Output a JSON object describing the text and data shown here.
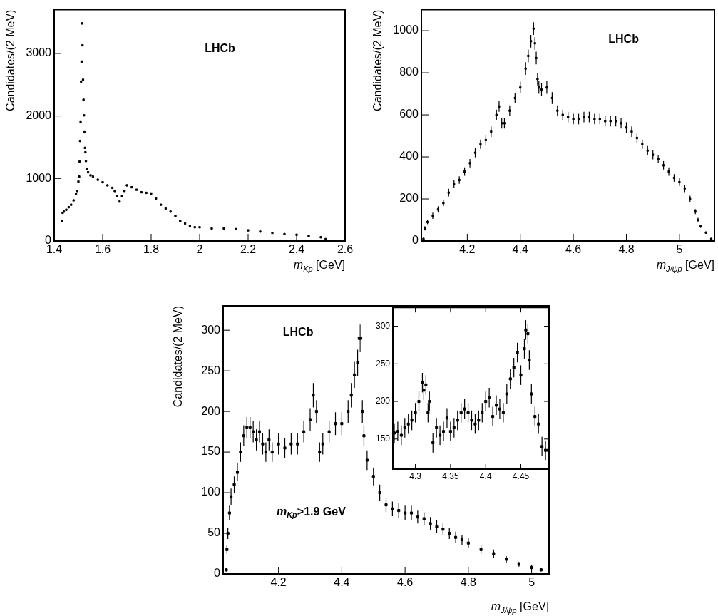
{
  "chart_data": [
    {
      "type": "scatter",
      "xlabel": "m$_{Kp}$ [GeV]",
      "ylabel": "Candidates/(2 MeV)",
      "annotations": [
        "LHCb"
      ],
      "marker": "square",
      "xlim": [
        1.4,
        2.6
      ],
      "ylim": [
        0,
        3700
      ],
      "xticks": [
        1.4,
        1.6,
        1.8,
        2,
        2.2,
        2.4,
        2.6
      ],
      "yticks": [
        0,
        1000,
        2000,
        3000
      ],
      "x": [
        1.432,
        1.435,
        1.44,
        1.45,
        1.46,
        1.47,
        1.48,
        1.49,
        1.495,
        1.5,
        1.503,
        1.505,
        1.507,
        1.509,
        1.511,
        1.513,
        1.515,
        1.517,
        1.519,
        1.521,
        1.523,
        1.525,
        1.527,
        1.529,
        1.531,
        1.535,
        1.54,
        1.55,
        1.56,
        1.58,
        1.6,
        1.62,
        1.64,
        1.65,
        1.66,
        1.67,
        1.68,
        1.69,
        1.7,
        1.72,
        1.74,
        1.76,
        1.78,
        1.8,
        1.82,
        1.84,
        1.86,
        1.88,
        1.9,
        1.92,
        1.94,
        1.96,
        1.98,
        2,
        2.05,
        2.1,
        2.15,
        2.2,
        2.25,
        2.3,
        2.35,
        2.4,
        2.45,
        2.5,
        2.52
      ],
      "series": [
        {
          "color": "#000000",
          "values": [
            320,
            450,
            470,
            500,
            540,
            580,
            650,
            750,
            800,
            950,
            1030,
            1270,
            1600,
            1900,
            2550,
            2870,
            3480,
            3130,
            2580,
            2260,
            2010,
            1740,
            1490,
            1420,
            1280,
            1150,
            1100,
            1050,
            1030,
            980,
            940,
            890,
            850,
            800,
            720,
            630,
            720,
            800,
            890,
            860,
            820,
            780,
            770,
            760,
            680,
            580,
            520,
            470,
            400,
            320,
            280,
            240,
            220,
            220,
            200,
            200,
            190,
            170,
            150,
            130,
            110,
            100,
            80,
            60,
            30
          ]
        }
      ]
    },
    {
      "type": "scatter",
      "xlabel": "m$_{J/ψp}$ [GeV]",
      "ylabel": "Candidates/(2 MeV)",
      "annotations": [
        "LHCb"
      ],
      "marker": "square",
      "xlim": [
        4.027,
        5.132
      ],
      "ylim": [
        0,
        1100
      ],
      "xticks": [
        4.2,
        4.4,
        4.6,
        4.8,
        5
      ],
      "yticks": [
        0,
        200,
        400,
        600,
        800,
        1000
      ],
      "x": [
        4.035,
        4.04,
        4.05,
        4.07,
        4.09,
        4.11,
        4.13,
        4.15,
        4.17,
        4.19,
        4.21,
        4.23,
        4.25,
        4.27,
        4.29,
        4.31,
        4.32,
        4.33,
        4.34,
        4.36,
        4.38,
        4.4,
        4.42,
        4.43,
        4.44,
        4.45,
        4.455,
        4.46,
        4.465,
        4.47,
        4.48,
        4.5,
        4.52,
        4.54,
        4.56,
        4.58,
        4.6,
        4.62,
        4.64,
        4.66,
        4.68,
        4.7,
        4.72,
        4.74,
        4.76,
        4.78,
        4.8,
        4.82,
        4.84,
        4.86,
        4.88,
        4.9,
        4.92,
        4.94,
        4.96,
        4.98,
        5,
        5.02,
        5.04,
        5.06,
        5.07,
        5.08,
        5.1,
        5.12
      ],
      "series": [
        {
          "color": "#000000",
          "values": [
            10,
            60,
            90,
            120,
            150,
            180,
            230,
            270,
            290,
            330,
            370,
            420,
            460,
            480,
            520,
            600,
            640,
            560,
            560,
            620,
            680,
            730,
            820,
            880,
            950,
            1010,
            940,
            870,
            770,
            730,
            720,
            730,
            680,
            620,
            600,
            590,
            580,
            580,
            590,
            590,
            580,
            580,
            570,
            570,
            570,
            560,
            540,
            520,
            490,
            460,
            430,
            410,
            390,
            360,
            330,
            300,
            280,
            250,
            200,
            140,
            100,
            70,
            40,
            10
          ],
          "errors": [
            null,
            10,
            10,
            15,
            15,
            15,
            18,
            18,
            18,
            20,
            20,
            22,
            22,
            25,
            25,
            25,
            25,
            25,
            25,
            25,
            25,
            28,
            30,
            30,
            30,
            30,
            30,
            30,
            30,
            30,
            30,
            30,
            28,
            25,
            25,
            25,
            25,
            25,
            25,
            25,
            25,
            25,
            25,
            25,
            25,
            25,
            25,
            25,
            22,
            22,
            22,
            22,
            20,
            20,
            20,
            18,
            18,
            18,
            15,
            12,
            10,
            8,
            null,
            null
          ]
        }
      ]
    },
    {
      "type": "scatter",
      "xlabel": "m$_{J/ψp}$ [GeV]",
      "ylabel": "Candidates/(2 MeV)",
      "annotations": [
        "LHCb",
        "m$_{Kp}$>1.9 GeV"
      ],
      "marker": "square",
      "xlim": [
        4.025,
        5.055
      ],
      "ylim": [
        0,
        330
      ],
      "xticks": [
        4.2,
        4.4,
        4.6,
        4.8,
        5
      ],
      "yticks": [
        0,
        50,
        100,
        150,
        200,
        250,
        300
      ],
      "x": [
        4.035,
        4.037,
        4.04,
        4.045,
        4.05,
        4.06,
        4.07,
        4.08,
        4.09,
        4.1,
        4.11,
        4.12,
        4.13,
        4.14,
        4.15,
        4.16,
        4.17,
        4.18,
        4.2,
        4.22,
        4.24,
        4.26,
        4.28,
        4.3,
        4.31,
        4.32,
        4.33,
        4.34,
        4.36,
        4.38,
        4.4,
        4.42,
        4.43,
        4.44,
        4.45,
        4.455,
        4.46,
        4.465,
        4.47,
        4.48,
        4.5,
        4.52,
        4.54,
        4.56,
        4.58,
        4.6,
        4.62,
        4.64,
        4.66,
        4.68,
        4.7,
        4.72,
        4.74,
        4.76,
        4.78,
        4.8,
        4.84,
        4.88,
        4.92,
        4.96,
        5,
        5.03
      ],
      "series": [
        {
          "color": "#000000",
          "values": [
            5,
            30,
            50,
            75,
            95,
            110,
            125,
            150,
            170,
            180,
            180,
            175,
            165,
            175,
            160,
            150,
            165,
            150,
            160,
            155,
            160,
            160,
            175,
            190,
            220,
            200,
            150,
            160,
            175,
            185,
            185,
            200,
            220,
            245,
            260,
            290,
            290,
            200,
            170,
            140,
            120,
            100,
            85,
            80,
            78,
            75,
            75,
            70,
            68,
            62,
            58,
            55,
            50,
            45,
            42,
            38,
            30,
            25,
            18,
            12,
            8,
            5
          ],
          "errors": [
            2,
            5,
            7,
            9,
            10,
            10,
            11,
            12,
            13,
            13,
            13,
            13,
            13,
            13,
            13,
            12,
            13,
            12,
            13,
            12,
            13,
            13,
            13,
            14,
            15,
            14,
            12,
            13,
            13,
            14,
            14,
            14,
            15,
            16,
            16,
            17,
            17,
            14,
            13,
            12,
            11,
            10,
            9,
            9,
            9,
            9,
            9,
            8,
            8,
            8,
            8,
            7,
            7,
            7,
            6,
            6,
            5,
            5,
            4,
            3,
            3,
            2
          ]
        }
      ]
    },
    {
      "type": "scatter",
      "marker": "square",
      "xlim": [
        4.268,
        4.49
      ],
      "ylim": [
        110,
        325
      ],
      "xticks": [
        4.3,
        4.35,
        4.4,
        4.45
      ],
      "yticks": [
        150,
        200,
        250,
        300
      ],
      "x": [
        4.27,
        4.275,
        4.28,
        4.285,
        4.29,
        4.295,
        4.3,
        4.305,
        4.31,
        4.312,
        4.315,
        4.318,
        4.32,
        4.325,
        4.33,
        4.335,
        4.34,
        4.345,
        4.35,
        4.355,
        4.36,
        4.365,
        4.37,
        4.375,
        4.38,
        4.385,
        4.39,
        4.395,
        4.4,
        4.405,
        4.41,
        4.415,
        4.42,
        4.425,
        4.43,
        4.435,
        4.44,
        4.445,
        4.45,
        4.455,
        4.457,
        4.46,
        4.462,
        4.465,
        4.47,
        4.475,
        4.48,
        4.485,
        4.489
      ],
      "series": [
        {
          "color": "#000000",
          "values": [
            158,
            160,
            155,
            165,
            170,
            175,
            185,
            200,
            225,
            215,
            222,
            185,
            200,
            145,
            165,
            155,
            160,
            178,
            160,
            165,
            175,
            185,
            190,
            185,
            175,
            170,
            175,
            185,
            200,
            205,
            180,
            195,
            190,
            185,
            210,
            230,
            245,
            265,
            235,
            270,
            295,
            290,
            255,
            210,
            180,
            170,
            140,
            135,
            135
          ],
          "errors": [
            13,
            13,
            13,
            13,
            13,
            13,
            13,
            13,
            13,
            13,
            13,
            13,
            13,
            13,
            13,
            13,
            13,
            13,
            13,
            13,
            13,
            13,
            13,
            13,
            13,
            13,
            13,
            13,
            13,
            13,
            13,
            13,
            13,
            13,
            13,
            13,
            13,
            13,
            13,
            13,
            13,
            13,
            13,
            13,
            13,
            13,
            13,
            13,
            13
          ]
        }
      ]
    }
  ]
}
